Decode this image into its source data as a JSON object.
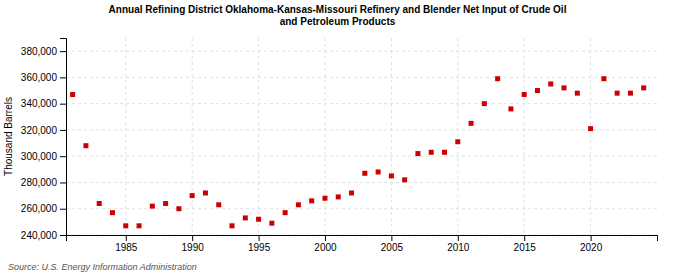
{
  "chart_data": {
    "type": "scatter",
    "title": "Annual Refining District Oklahoma-Kansas-Missouri Refinery and Blender Net Input of Crude Oil\nand Petroleum Products",
    "ylabel": "Thousand Barrels",
    "source": "Source: U.S. Energy Information Administration",
    "color": "#cc0000",
    "marker": "square",
    "grid": true,
    "xlim": [
      1980.5,
      2025
    ],
    "xticks": [
      1985,
      1990,
      1995,
      2000,
      2005,
      2010,
      2015,
      2020
    ],
    "ylim": [
      240000,
      390000
    ],
    "yticks": [
      {
        "value": 240000,
        "label": "240,000"
      },
      {
        "value": 260000,
        "label": "260,000"
      },
      {
        "value": 280000,
        "label": "280,000"
      },
      {
        "value": 300000,
        "label": "300,000"
      },
      {
        "value": 320000,
        "label": "320,000"
      },
      {
        "value": 340000,
        "label": "340,000"
      },
      {
        "value": 360000,
        "label": "360,000"
      },
      {
        "value": 380000,
        "label": "380,000"
      }
    ],
    "x": [
      1981,
      1982,
      1983,
      1984,
      1985,
      1986,
      1987,
      1988,
      1989,
      1990,
      1991,
      1992,
      1993,
      1994,
      1995,
      1996,
      1997,
      1998,
      1999,
      2000,
      2001,
      2002,
      2003,
      2004,
      2005,
      2006,
      2007,
      2008,
      2009,
      2010,
      2011,
      2012,
      2013,
      2014,
      2015,
      2016,
      2017,
      2018,
      2019,
      2020,
      2021,
      2022,
      2023,
      2024
    ],
    "values": [
      347000,
      308000,
      264000,
      257000,
      247000,
      247000,
      262000,
      264000,
      260000,
      270000,
      272000,
      263000,
      247000,
      253000,
      252000,
      249000,
      257000,
      263000,
      266000,
      268000,
      269000,
      272000,
      287000,
      288000,
      285000,
      282000,
      302000,
      303000,
      303000,
      311000,
      325000,
      340000,
      359000,
      336000,
      347000,
      350000,
      355000,
      352000,
      348000,
      321000,
      359000,
      348000,
      348000,
      352000
    ]
  }
}
